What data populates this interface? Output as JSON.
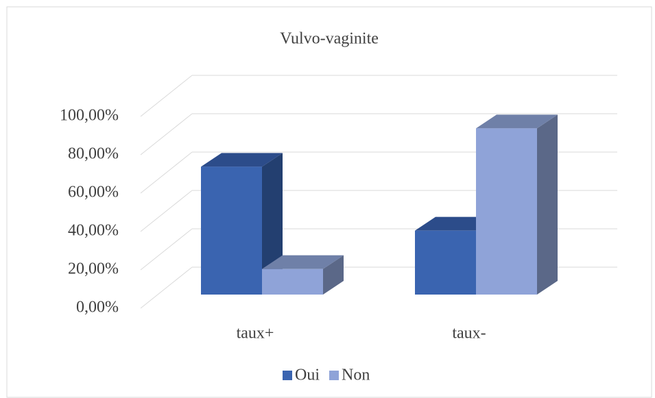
{
  "chart_data": {
    "type": "bar3d",
    "title": "Vulvo-vaginite",
    "categories": [
      "taux+",
      "taux-"
    ],
    "series": [
      {
        "name": "Oui",
        "color": "#3a64b0",
        "side": "#233f70",
        "top": "#2c4c8a",
        "values": [
          66.67,
          33.33
        ]
      },
      {
        "name": "Non",
        "color": "#8fa3d8",
        "side": "#5b6888",
        "top": "#6f80a8",
        "values": [
          13.33,
          86.67
        ]
      }
    ],
    "ylim": [
      0,
      100
    ],
    "yticks": [
      {
        "value": 0,
        "label": "0,00%"
      },
      {
        "value": 20,
        "label": "20,00%"
      },
      {
        "value": 40,
        "label": "40,00%"
      },
      {
        "value": 60,
        "label": "60,00%"
      },
      {
        "value": 80,
        "label": "80,00%"
      },
      {
        "value": 100,
        "label": "100,00%"
      }
    ],
    "grid": true,
    "legend": "bottom"
  }
}
